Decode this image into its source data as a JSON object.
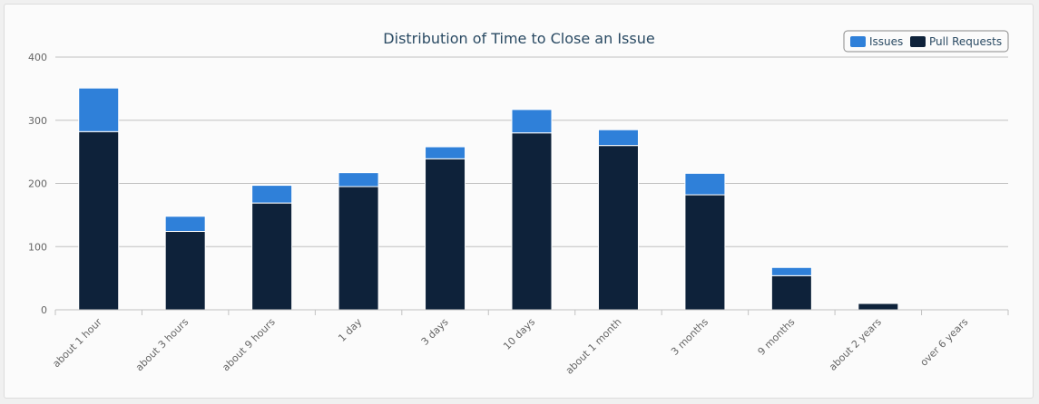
{
  "chart_data": {
    "type": "bar",
    "stacked": true,
    "title": "Distribution of Time to Close an Issue",
    "xlabel": "",
    "ylabel": "",
    "ylim": [
      0,
      400
    ],
    "yticks": [
      0,
      100,
      200,
      300,
      400
    ],
    "grid": true,
    "legend_position": "top-right",
    "categories": [
      "about 1 hour",
      "about 3 hours",
      "about 9 hours",
      "1 day",
      "3 days",
      "10 days",
      "about 1 month",
      "3 months",
      "9 months",
      "about 2 years",
      "over 6 years"
    ],
    "series": [
      {
        "name": "Pull Requests",
        "color": "#0e223a",
        "values": [
          282,
          124,
          169,
          195,
          239,
          280,
          260,
          182,
          54,
          10,
          0
        ]
      },
      {
        "name": "Issues",
        "color": "#2f80d9",
        "values": [
          69,
          24,
          28,
          22,
          19,
          37,
          25,
          34,
          13,
          0,
          0
        ]
      }
    ]
  },
  "legend": [
    {
      "name": "Issues",
      "color": "#2f80d9"
    },
    {
      "name": "Pull Requests",
      "color": "#0e223a"
    }
  ]
}
